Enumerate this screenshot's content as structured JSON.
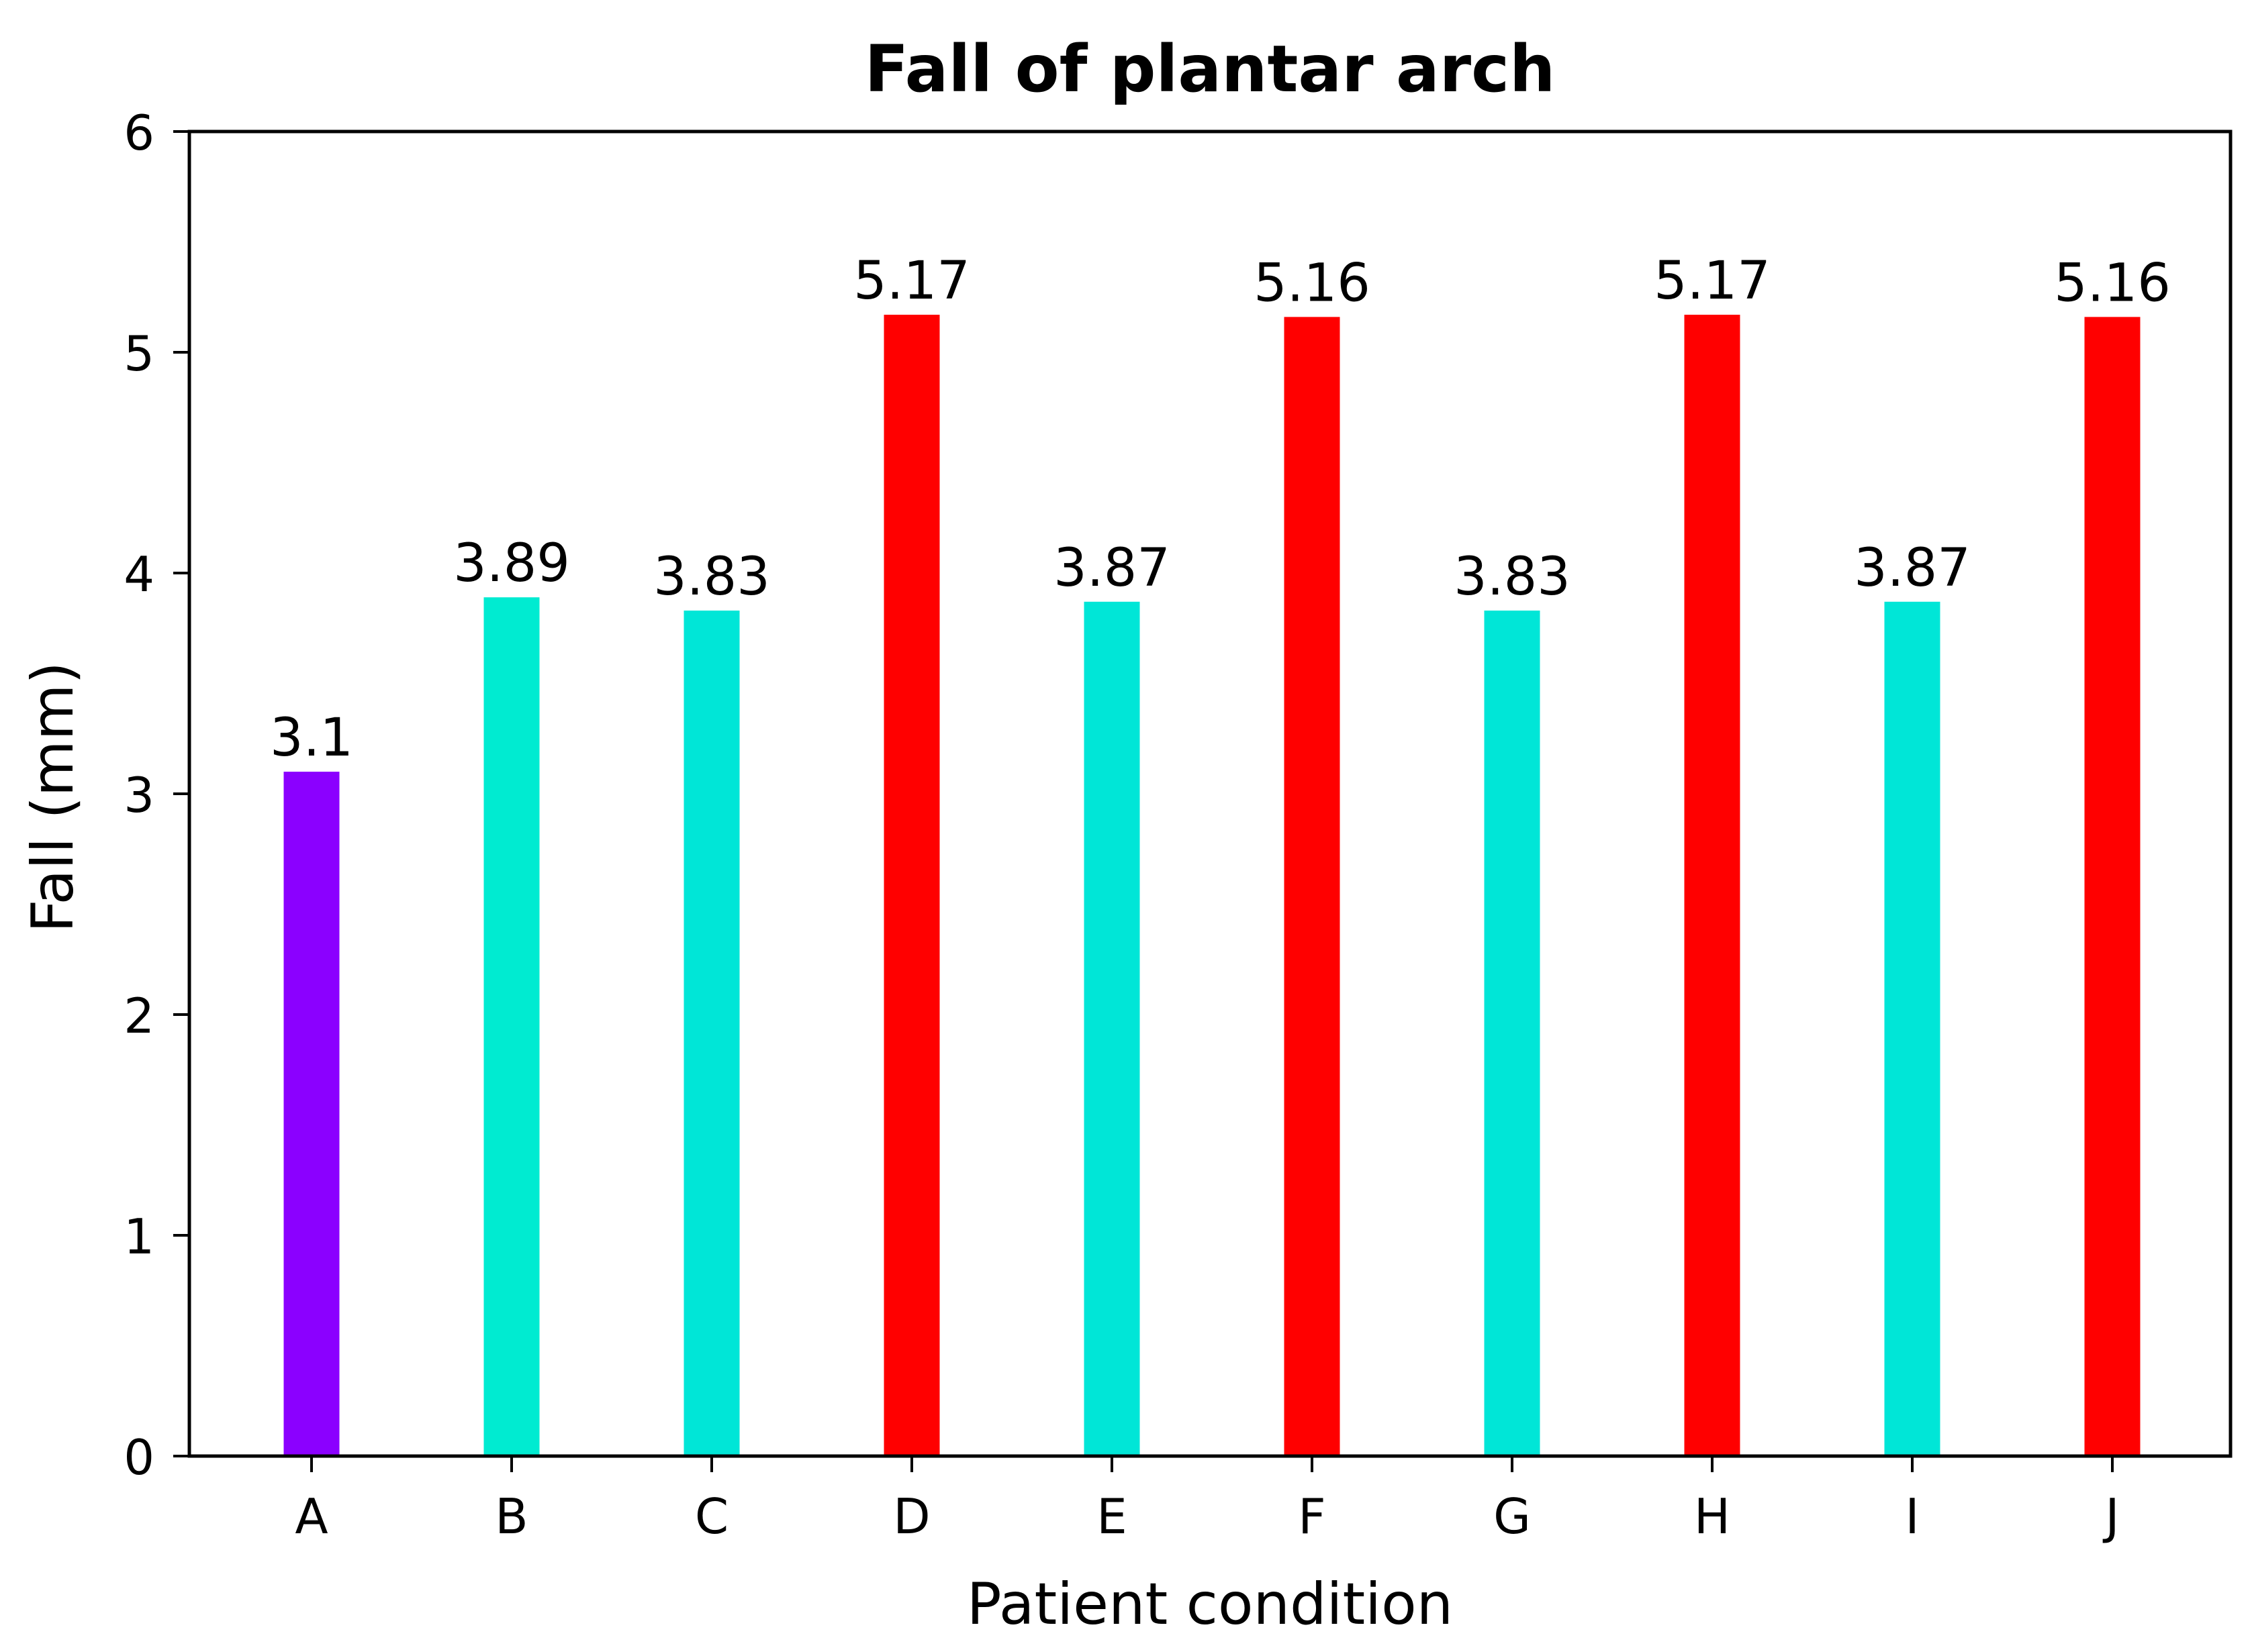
{
  "chart_data": {
    "type": "bar",
    "title": "Fall of plantar arch",
    "xlabel": "Patient condition",
    "ylabel": "Fall (mm)",
    "categories": [
      "A",
      "B",
      "C",
      "D",
      "E",
      "F",
      "G",
      "H",
      "I",
      "J"
    ],
    "values": [
      3.1,
      3.89,
      3.83,
      5.17,
      3.87,
      5.16,
      3.83,
      5.17,
      3.87,
      5.16
    ],
    "value_labels": [
      "3.1",
      "3.89",
      "3.83",
      "5.17",
      "3.87",
      "5.16",
      "3.83",
      "5.17",
      "3.87",
      "5.16"
    ],
    "bar_colors": [
      "#8b00ff",
      "#00ebd1",
      "#00e6d7",
      "#ff0000",
      "#00e6d7",
      "#ff0000",
      "#00e6d7",
      "#ff0000",
      "#00e6d7",
      "#ff0000"
    ],
    "ylim": [
      0,
      6
    ],
    "yticks": [
      0,
      1,
      2,
      3,
      4,
      5,
      6
    ],
    "ytick_labels": [
      "0",
      "1",
      "2",
      "3",
      "4",
      "5",
      "6"
    ],
    "grid": false,
    "legend": "none"
  },
  "colors": {
    "axis": "#000000",
    "background": "#ffffff"
  }
}
